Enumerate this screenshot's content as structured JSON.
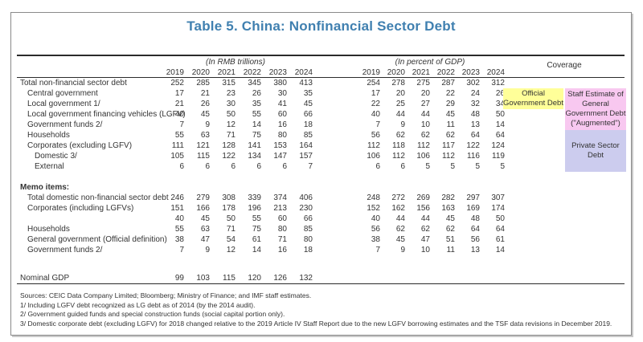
{
  "title": "Table 5. China: Nonfinancial Sector Debt",
  "colors": {
    "title": "#4080B0",
    "official_box": "#FFFF99",
    "augmented_box": "#F8C8F0",
    "private_box": "#CCCCEE"
  },
  "header": {
    "group_rmb": "(In RMB trillions)",
    "group_gdp": "(In percent of GDP)",
    "coverage": "Coverage",
    "years": [
      "2019",
      "2020",
      "2021",
      "2022",
      "2023",
      "2024"
    ]
  },
  "table": {
    "rows": [
      {
        "label": "Total non-financial sector debt",
        "indent": 0,
        "rmb": [
          "252",
          "285",
          "315",
          "345",
          "380",
          "413"
        ],
        "pct": [
          "254",
          "278",
          "275",
          "287",
          "302",
          "312"
        ]
      },
      {
        "label": "Central government",
        "indent": 1,
        "rmb": [
          "17",
          "21",
          "23",
          "26",
          "30",
          "35"
        ],
        "pct": [
          "17",
          "20",
          "20",
          "22",
          "24",
          "26"
        ]
      },
      {
        "label": "Local government 1/",
        "indent": 1,
        "rmb": [
          "21",
          "26",
          "30",
          "35",
          "41",
          "45"
        ],
        "pct": [
          "22",
          "25",
          "27",
          "29",
          "32",
          "34"
        ]
      },
      {
        "label": "Local government financing vehicles (LGFV)",
        "indent": 1,
        "rmb": [
          "40",
          "45",
          "50",
          "55",
          "60",
          "66"
        ],
        "pct": [
          "40",
          "44",
          "44",
          "45",
          "48",
          "50"
        ]
      },
      {
        "label": "Government funds 2/",
        "indent": 1,
        "rmb": [
          "7",
          "9",
          "12",
          "14",
          "16",
          "18"
        ],
        "pct": [
          "7",
          "9",
          "10",
          "11",
          "13",
          "14"
        ]
      },
      {
        "label": "Households",
        "indent": 1,
        "rmb": [
          "55",
          "63",
          "71",
          "75",
          "80",
          "85"
        ],
        "pct": [
          "56",
          "62",
          "62",
          "62",
          "64",
          "64"
        ]
      },
      {
        "label": "Corporates (excluding LGFV)",
        "indent": 1,
        "rmb": [
          "111",
          "121",
          "128",
          "141",
          "153",
          "164"
        ],
        "pct": [
          "112",
          "118",
          "112",
          "117",
          "122",
          "124"
        ]
      },
      {
        "label": "Domestic 3/",
        "indent": 2,
        "rmb": [
          "105",
          "115",
          "122",
          "134",
          "147",
          "157"
        ],
        "pct": [
          "106",
          "112",
          "106",
          "112",
          "116",
          "119"
        ]
      },
      {
        "label": "External",
        "indent": 2,
        "rmb": [
          "6",
          "6",
          "6",
          "6",
          "6",
          "7"
        ],
        "pct": [
          "6",
          "6",
          "5",
          "5",
          "5",
          "5"
        ]
      },
      {
        "type": "spacer",
        "h": 13
      },
      {
        "label": "Memo items:",
        "indent": 0,
        "bold": true,
        "rmb": [
          "",
          "",
          "",
          "",
          "",
          ""
        ],
        "pct": [
          "",
          "",
          "",
          "",
          "",
          ""
        ]
      },
      {
        "label": "Total domestic non-financial sector debt",
        "indent": 1,
        "rmb": [
          "246",
          "279",
          "308",
          "339",
          "374",
          "406"
        ],
        "pct": [
          "248",
          "272",
          "269",
          "282",
          "297",
          "307"
        ]
      },
      {
        "label": "Corporates (including LGFVs)",
        "indent": 1,
        "rmb": [
          "151",
          "166",
          "178",
          "196",
          "213",
          "230"
        ],
        "pct": [
          "152",
          "162",
          "156",
          "163",
          "169",
          "174"
        ]
      },
      {
        "label": "",
        "indent": 1,
        "rmb": [
          "40",
          "45",
          "50",
          "55",
          "60",
          "66"
        ],
        "pct": [
          "40",
          "44",
          "44",
          "45",
          "48",
          "50"
        ]
      },
      {
        "label": "Households",
        "indent": 1,
        "rmb": [
          "55",
          "63",
          "71",
          "75",
          "80",
          "85"
        ],
        "pct": [
          "56",
          "62",
          "62",
          "62",
          "64",
          "64"
        ]
      },
      {
        "label": "General government (Official definition)",
        "indent": 1,
        "rmb": [
          "38",
          "47",
          "54",
          "61",
          "71",
          "80"
        ],
        "pct": [
          "38",
          "45",
          "47",
          "51",
          "56",
          "61"
        ]
      },
      {
        "label": "Government funds 2/",
        "indent": 1,
        "rmb": [
          "7",
          "9",
          "12",
          "14",
          "16",
          "18"
        ],
        "pct": [
          "7",
          "9",
          "10",
          "11",
          "13",
          "14"
        ]
      },
      {
        "type": "spacer",
        "h": 22
      },
      {
        "label": "Nominal GDP",
        "indent": 0,
        "rmb": [
          "99",
          "103",
          "115",
          "120",
          "126",
          "132"
        ],
        "pct": [
          "",
          "",
          "",
          "",
          "",
          ""
        ]
      }
    ]
  },
  "coverage_boxes": [
    {
      "id": "official",
      "color_key": "official_box",
      "lines": [
        "Official",
        "Government Debt"
      ]
    },
    {
      "id": "augmented",
      "color_key": "augmented_box",
      "lines": [
        "Staff Estimate of",
        "General",
        "Government Debt",
        "(\"Augmented\")"
      ]
    },
    {
      "id": "private",
      "color_key": "private_box",
      "lines": [
        "Private Sector",
        "Debt"
      ]
    }
  ],
  "footnotes": [
    "Sources: CEIC Data Company Limited; Bloomberg; Ministry of Finance; and IMF staff estimates.",
    "1/ Including LGFV debt recognized as LG debt as of 2014 (by the 2014 audit).",
    "2/ Government guided funds and special construction funds (social capital portion only).",
    "3/ Domestic corporate debt (excluding LGFV) for 2018 changed relative to the 2019 Article IV Staff Report due to the new LGFV borrowing estimates and the TSF data revisions in December 2019."
  ]
}
